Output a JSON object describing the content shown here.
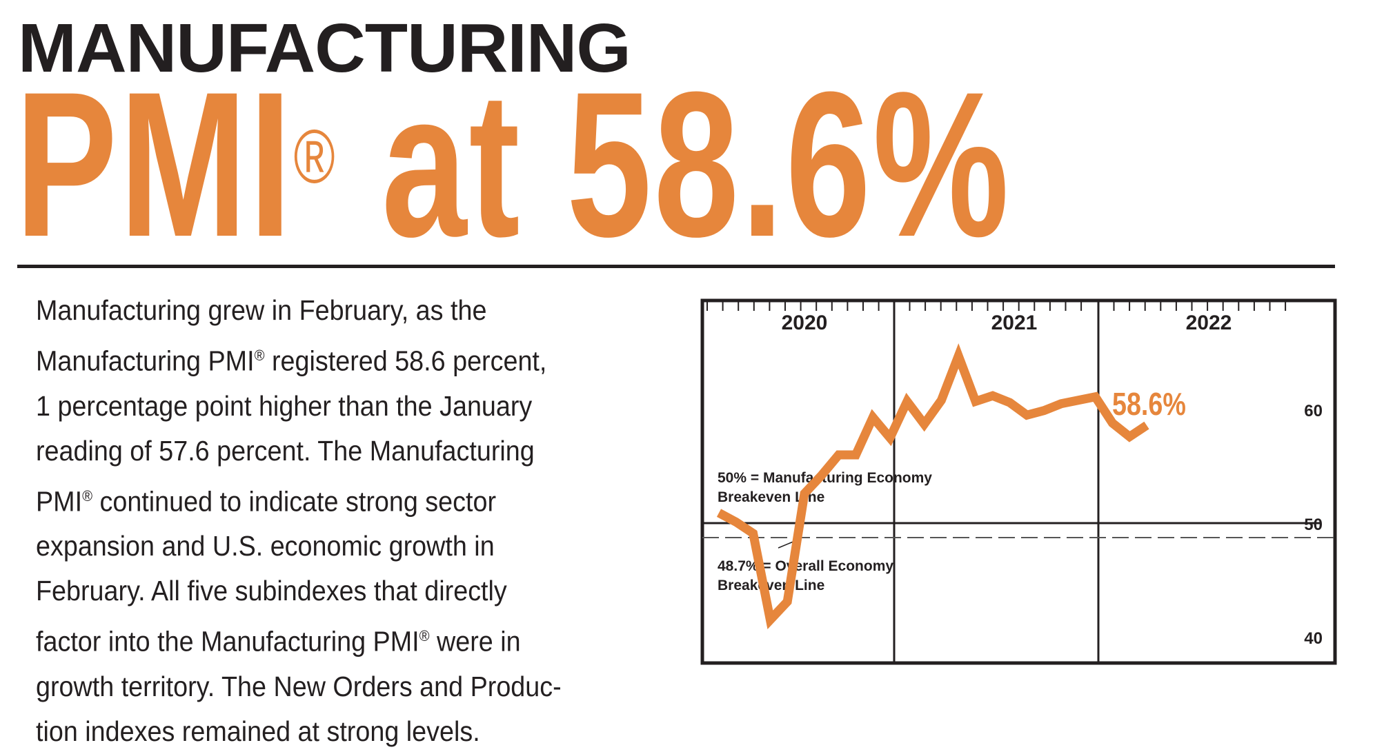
{
  "headline": {
    "line1": "MANUFACTURING",
    "line2_prefix": "PMI",
    "line2_mark": "®",
    "line2_suffix": " at 58.6%"
  },
  "body": {
    "lines": [
      [
        "Manufacturing grew in February, as the",
        "",
        ""
      ],
      [
        "Manufacturing PMI",
        "®",
        " registered 58.6 percent,"
      ],
      [
        "1 percentage point higher than the January",
        "",
        ""
      ],
      [
        "reading of 57.6 percent. The Manufacturing",
        "",
        ""
      ],
      [
        "PMI",
        "®",
        " continued to indicate strong sector"
      ],
      [
        "expansion and U.S. economic growth in",
        "",
        ""
      ],
      [
        "February. All five subindexes that directly",
        "",
        ""
      ],
      [
        "factor into the Manufacturing PMI",
        "®",
        " were in"
      ],
      [
        "growth territory. The New Orders and Produc-",
        "",
        ""
      ],
      [
        "tion indexes remained at strong levels.",
        "",
        ""
      ]
    ]
  },
  "colors": {
    "accent": "#e6863c",
    "ink": "#231f20"
  },
  "chart_data": {
    "type": "line",
    "title": "",
    "xlabel": "",
    "ylabel": "",
    "year_labels": [
      "2020",
      "2021",
      "2022"
    ],
    "x": [
      "Jan 2020",
      "Feb 2020",
      "Mar 2020",
      "Apr 2020",
      "May 2020",
      "Jun 2020",
      "Jul 2020",
      "Aug 2020",
      "Sep 2020",
      "Oct 2020",
      "Nov 2020",
      "Dec 2020",
      "Jan 2021",
      "Feb 2021",
      "Mar 2021",
      "Apr 2021",
      "May 2021",
      "Jun 2021",
      "Jul 2021",
      "Aug 2021",
      "Sep 2021",
      "Oct 2021",
      "Nov 2021",
      "Dec 2021",
      "Jan 2022",
      "Feb 2022"
    ],
    "series": [
      {
        "name": "Manufacturing PMI",
        "values": [
          50.9,
          50.1,
          49.1,
          41.5,
          43.1,
          52.6,
          54.2,
          56.0,
          56.0,
          59.3,
          57.5,
          60.7,
          58.7,
          60.8,
          64.7,
          60.7,
          61.2,
          60.6,
          59.5,
          59.9,
          60.5,
          60.8,
          61.1,
          58.8,
          57.6,
          58.6
        ]
      }
    ],
    "yticks": [
      40,
      50,
      60
    ],
    "ytick_labels": [
      "40",
      "50",
      "60"
    ],
    "ylim": [
      36,
      68
    ],
    "reference_lines": [
      {
        "value": 50,
        "style": "solid",
        "label_line1": "50% = Manufacturing Economy",
        "label_line2": "Breakeven Line"
      },
      {
        "value": 48.7,
        "style": "dashed",
        "label_line1": "48.7% = Overall Economy",
        "label_line2": "Breakeven Line"
      }
    ],
    "last_value_label": "58.6%",
    "grid": false,
    "legend": "none",
    "minor_ticks_per_year": 12
  }
}
